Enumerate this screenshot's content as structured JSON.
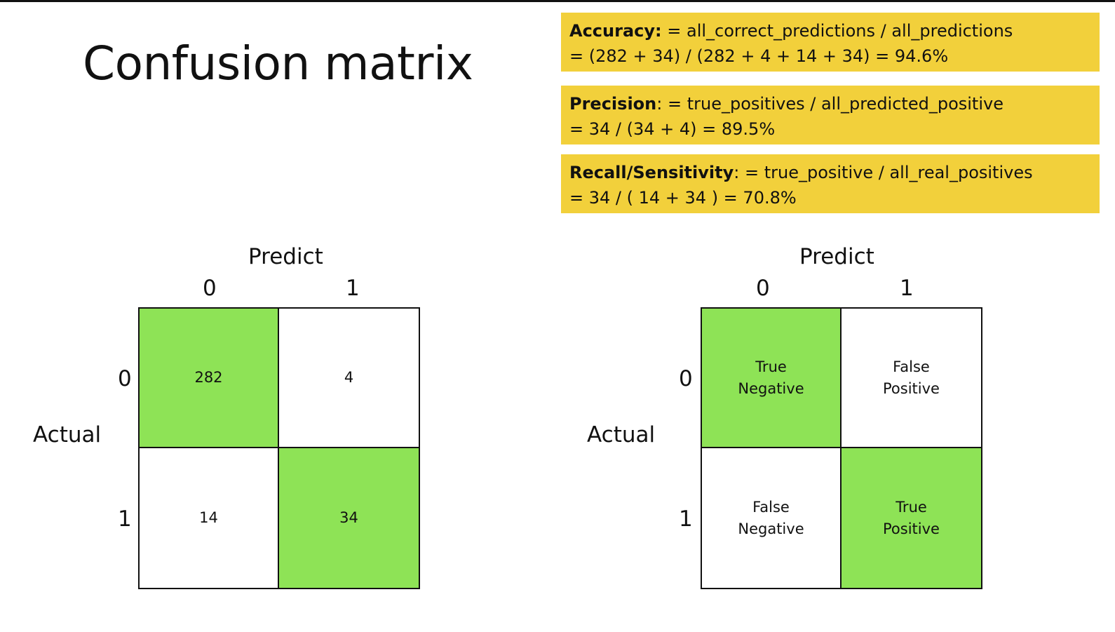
{
  "title": "Confusion matrix",
  "colors": {
    "formula_background": "#f2d03b",
    "correct_cell": "#8ee356",
    "other_cell": "#ffffff"
  },
  "formulas": [
    {
      "label": "Accuracy:",
      "definition": " = all_correct_predictions / all_predictions",
      "calculation": "= (282 + 34) / (282 + 4 + 14 + 34) = 94.6%"
    },
    {
      "label": "Precision",
      "definition": ": = true_positives / all_predicted_positive",
      "calculation": "= 34 / (34 + 4)  = 89.5%"
    },
    {
      "label": "Recall/Sensitivity",
      "definition": ": = true_positive / all_real_positives",
      "calculation": "= 34 / ( 14 + 34 ) = 70.8%"
    }
  ],
  "matrix_counts": {
    "predict_label": "Predict",
    "actual_label": "Actual",
    "col_labels": [
      "0",
      "1"
    ],
    "row_labels": [
      "0",
      "1"
    ],
    "cells": [
      [
        "282",
        "4"
      ],
      [
        "14",
        "34"
      ]
    ]
  },
  "matrix_terms": {
    "predict_label": "Predict",
    "actual_label": "Actual",
    "col_labels": [
      "0",
      "1"
    ],
    "row_labels": [
      "0",
      "1"
    ],
    "cells": [
      [
        {
          "line1": "True",
          "line2": "Negative"
        },
        {
          "line1": "False",
          "line2": "Positive"
        }
      ],
      [
        {
          "line1": "False",
          "line2": "Negative"
        },
        {
          "line1": "True",
          "line2": "Positive"
        }
      ]
    ]
  }
}
